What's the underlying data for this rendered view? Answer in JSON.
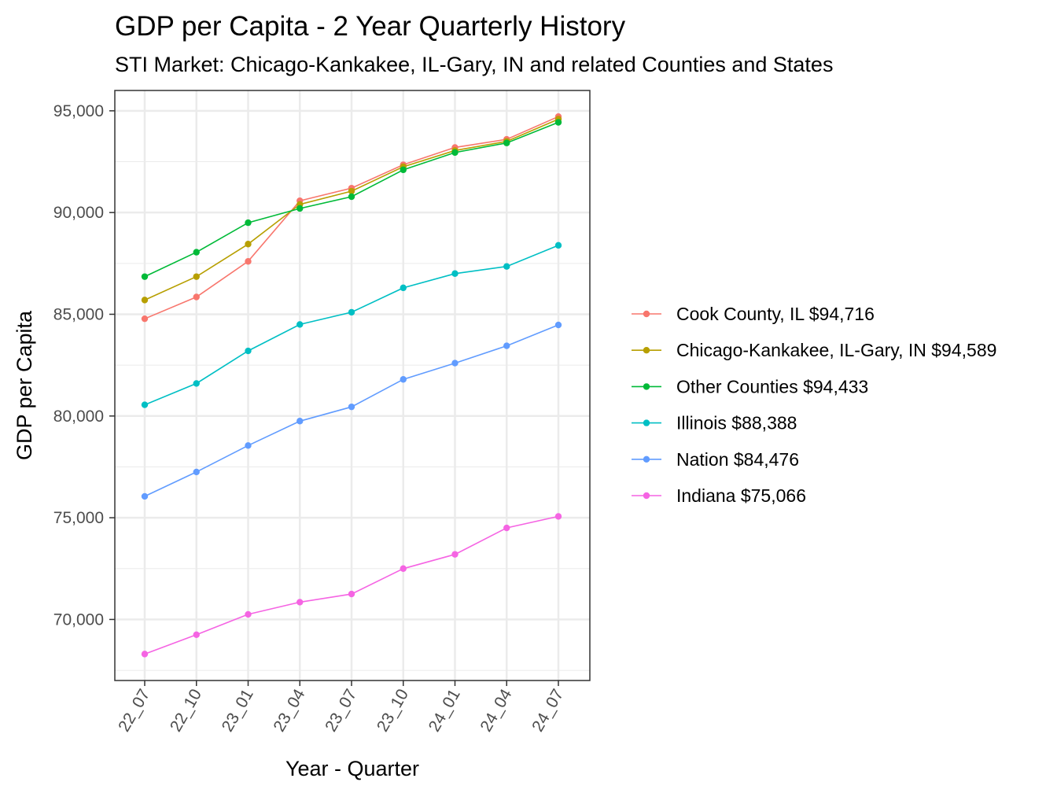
{
  "chart_data": {
    "type": "line",
    "title": "GDP per Capita - 2 Year Quarterly History",
    "subtitle": "STI Market: Chicago-Kankakee, IL-Gary, IN and related Counties and States",
    "xlabel": "Year - Quarter",
    "ylabel": "GDP per Capita",
    "categories": [
      "22_07",
      "22_10",
      "23_01",
      "23_04",
      "23_07",
      "23_10",
      "24_01",
      "24_04",
      "24_07"
    ],
    "ylim": [
      67000,
      96000
    ],
    "yticks": [
      70000,
      75000,
      80000,
      85000,
      90000,
      95000
    ],
    "ytick_labels": [
      "70,000",
      "75,000",
      "80,000",
      "85,000",
      "90,000",
      "95,000"
    ],
    "grid": true,
    "legend_position": "right",
    "series": [
      {
        "name": "Cook County, IL",
        "legend_label": "Cook County, IL $94,716",
        "color": "#F8766D",
        "values": [
          84780,
          85850,
          87600,
          90580,
          91200,
          92350,
          93200,
          93600,
          94716
        ]
      },
      {
        "name": "Chicago-Kankakee, IL-Gary, IN",
        "legend_label": "Chicago-Kankakee, IL-Gary, IN $94,589",
        "color": "#B79F00",
        "values": [
          85700,
          86850,
          88450,
          90400,
          91050,
          92250,
          93050,
          93500,
          94589
        ]
      },
      {
        "name": "Other Counties",
        "legend_label": "Other Counties $94,433",
        "color": "#00BA38",
        "values": [
          86850,
          88050,
          89500,
          90200,
          90780,
          92100,
          92950,
          93420,
          94433
        ]
      },
      {
        "name": "Illinois",
        "legend_label": "Illinois $88,388",
        "color": "#00BFC4",
        "values": [
          80550,
          81600,
          83200,
          84500,
          85100,
          86300,
          87000,
          87350,
          88388
        ]
      },
      {
        "name": "Nation",
        "legend_label": "Nation $84,476",
        "color": "#619CFF",
        "values": [
          76050,
          77250,
          78550,
          79750,
          80450,
          81800,
          82600,
          83450,
          84476
        ]
      },
      {
        "name": "Indiana",
        "legend_label": "Indiana $75,066",
        "color": "#F564E3",
        "values": [
          68300,
          69250,
          70250,
          70850,
          71250,
          72500,
          73200,
          74500,
          75066
        ]
      }
    ]
  }
}
